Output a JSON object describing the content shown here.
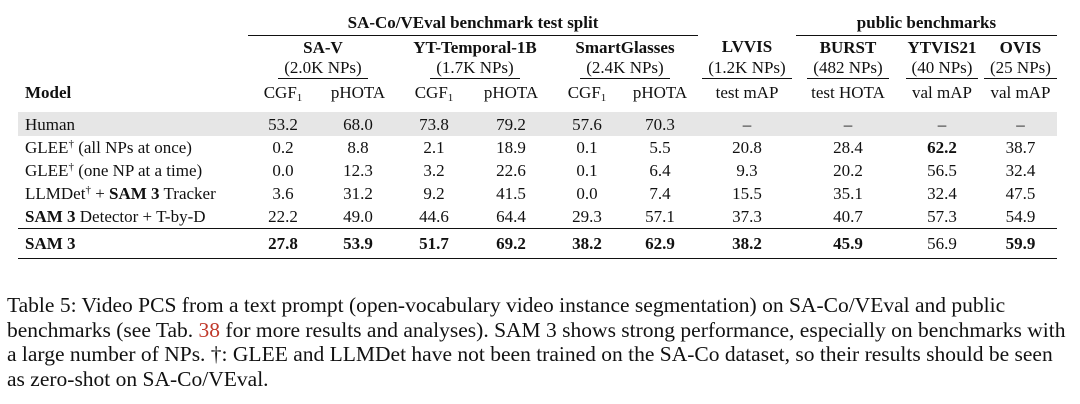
{
  "table": {
    "group_headers": {
      "saco": "SA-Co/VEval benchmark test split",
      "public": "public benchmarks"
    },
    "datasets": [
      {
        "name": "SA-V",
        "nps": "(2.0K NPs)"
      },
      {
        "name": "YT-Temporal-1B",
        "nps": "(1.7K NPs)"
      },
      {
        "name": "SmartGlasses",
        "nps": "(2.4K NPs)"
      },
      {
        "name": "LVVIS",
        "nps": "(1.2K NPs)"
      },
      {
        "name": "BURST",
        "nps": "(482 NPs)"
      },
      {
        "name": "YTVIS21",
        "nps": "(40 NPs)"
      },
      {
        "name": "OVIS",
        "nps": "(25 NPs)"
      }
    ],
    "metric_headers": {
      "model": "Model",
      "cgf": "CGF",
      "cgf_sub": "1",
      "phota": "pHOTA",
      "lvvis": "test mAP",
      "burst": "test HOTA",
      "ytvis": "val mAP",
      "ovis": "val mAP"
    },
    "rows": [
      {
        "name": "Human",
        "values": [
          "53.2",
          "68.0",
          "73.8",
          "79.2",
          "57.6",
          "70.3",
          "–",
          "–",
          "–",
          "–"
        ]
      },
      {
        "name_parts": [
          "GLEE",
          "†",
          " (all NPs at once)"
        ],
        "values": [
          "0.2",
          "8.8",
          "2.1",
          "18.9",
          "0.1",
          "5.5",
          "20.8",
          "28.4",
          "62.2",
          "38.7"
        ]
      },
      {
        "name_parts": [
          "GLEE",
          "†",
          " (one NP at a time)"
        ],
        "values": [
          "0.0",
          "12.3",
          "3.2",
          "22.6",
          "0.1",
          "6.4",
          "9.3",
          "20.2",
          "56.5",
          "32.4"
        ]
      },
      {
        "name_parts": [
          "LLMDet",
          "†",
          " + ",
          "SAM 3",
          " Tracker"
        ],
        "values": [
          "3.6",
          "31.2",
          "9.2",
          "41.5",
          "0.0",
          "7.4",
          "15.5",
          "35.1",
          "32.4",
          "47.5"
        ]
      },
      {
        "name_parts": [
          "SAM 3",
          " Detector + T-by-D"
        ],
        "values": [
          "22.2",
          "49.0",
          "44.6",
          "64.4",
          "29.3",
          "57.1",
          "37.3",
          "40.7",
          "57.3",
          "54.9"
        ]
      },
      {
        "name": "SAM 3",
        "values": [
          "27.8",
          "53.9",
          "51.7",
          "69.2",
          "38.2",
          "62.9",
          "38.2",
          "45.9",
          "56.9",
          "59.9"
        ]
      }
    ]
  },
  "caption": {
    "part1": "Table 5: Video PCS from a text prompt (open-vocabulary video instance segmentation) on SA-Co/VEval and public benchmarks (see Tab. ",
    "ref": "38",
    "part2": " for more results and analyses). SAM 3 shows strong performance, especially on benchmarks with a large number of NPs. †: GLEE and LLMDet have not been trained on the SA-Co dataset, so their results should be seen as zero-shot on SA-Co/VEval."
  }
}
